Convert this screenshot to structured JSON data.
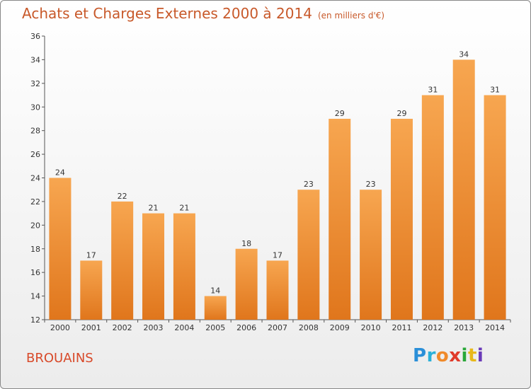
{
  "header": {
    "title": "Achats et Charges Externes 2000 à 2014",
    "unit": "(en milliers d'€)"
  },
  "footer": {
    "commune": "BROUAINS",
    "logo_letters": [
      "P",
      "r",
      "o",
      "x",
      "i",
      "t",
      "i"
    ]
  },
  "colors": {
    "bar_light": "#f7a650",
    "bar_dark": "#e0761c",
    "title": "#c8592a",
    "commune": "#d84a2a"
  },
  "chart_data": {
    "type": "bar",
    "title": "Achats et Charges Externes 2000 à 2014",
    "subtitle": "(en milliers d'€)",
    "categories": [
      "2000",
      "2001",
      "2002",
      "2003",
      "2004",
      "2005",
      "2006",
      "2007",
      "2008",
      "2009",
      "2010",
      "2011",
      "2012",
      "2013",
      "2014"
    ],
    "values": [
      24,
      17,
      22,
      21,
      21,
      14,
      18,
      17,
      23,
      29,
      23,
      29,
      31,
      34,
      31
    ],
    "ylim": [
      12,
      36
    ],
    "yticks": [
      12,
      14,
      16,
      18,
      20,
      22,
      24,
      26,
      28,
      30,
      32,
      34,
      36
    ],
    "grid": false,
    "legend": "none"
  }
}
